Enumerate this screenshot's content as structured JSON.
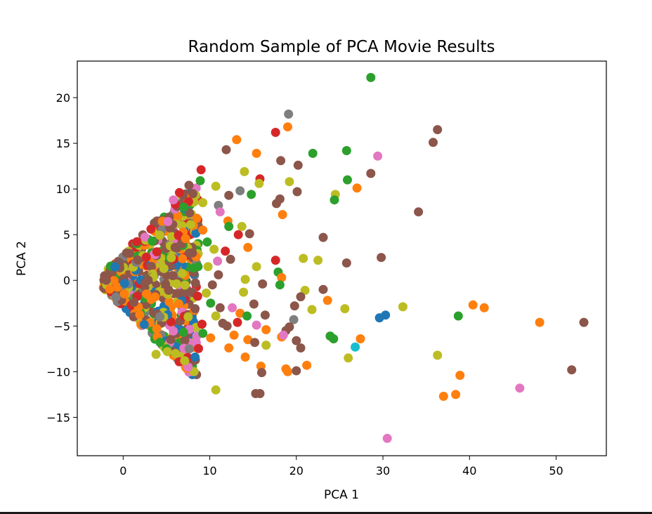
{
  "chart_data": {
    "type": "scatter",
    "title": "Random Sample of PCA Movie Results",
    "xlabel": "PCA 1",
    "ylabel": "PCA 2",
    "xlim": [
      -5.3,
      55.8
    ],
    "ylim": [
      -19.2,
      24.0
    ],
    "xticks": [
      0,
      10,
      20,
      30,
      40,
      50
    ],
    "yticks": [
      -15,
      -10,
      -5,
      0,
      5,
      10,
      15,
      20
    ],
    "grid": false,
    "legend": "none",
    "colors": {
      "blue": "#1f77b4",
      "orange": "#ff7f0e",
      "green": "#2ca02c",
      "red": "#d62728",
      "brown": "#8c564b",
      "pink": "#e377c2",
      "gray": "#7f7f7f",
      "olive": "#bcbd22",
      "cyan": "#17becf"
    },
    "points": [
      {
        "x": 28.6,
        "y": 22.2,
        "c": "green"
      },
      {
        "x": 19.1,
        "y": 18.2,
        "c": "gray"
      },
      {
        "x": 19.0,
        "y": 16.8,
        "c": "orange"
      },
      {
        "x": 17.6,
        "y": 16.2,
        "c": "red"
      },
      {
        "x": 36.3,
        "y": 16.5,
        "c": "brown"
      },
      {
        "x": 35.8,
        "y": 15.1,
        "c": "brown"
      },
      {
        "x": 13.1,
        "y": 15.4,
        "c": "orange"
      },
      {
        "x": 11.9,
        "y": 14.3,
        "c": "brown"
      },
      {
        "x": 15.4,
        "y": 13.9,
        "c": "orange"
      },
      {
        "x": 21.9,
        "y": 13.9,
        "c": "green"
      },
      {
        "x": 25.8,
        "y": 14.2,
        "c": "green"
      },
      {
        "x": 29.4,
        "y": 13.6,
        "c": "pink"
      },
      {
        "x": 18.2,
        "y": 13.1,
        "c": "brown"
      },
      {
        "x": 20.2,
        "y": 12.6,
        "c": "brown"
      },
      {
        "x": 28.6,
        "y": 11.7,
        "c": "brown"
      },
      {
        "x": 25.9,
        "y": 11.0,
        "c": "green"
      },
      {
        "x": 15.8,
        "y": 11.1,
        "c": "red"
      },
      {
        "x": 9.0,
        "y": 12.1,
        "c": "red"
      },
      {
        "x": 14.0,
        "y": 11.9,
        "c": "olive"
      },
      {
        "x": 13.5,
        "y": 9.8,
        "c": "gray"
      },
      {
        "x": 12.2,
        "y": 9.3,
        "c": "brown"
      },
      {
        "x": 14.8,
        "y": 9.4,
        "c": "green"
      },
      {
        "x": 15.7,
        "y": 10.6,
        "c": "olive"
      },
      {
        "x": 19.2,
        "y": 10.8,
        "c": "olive"
      },
      {
        "x": 20.1,
        "y": 9.7,
        "c": "brown"
      },
      {
        "x": 27.0,
        "y": 10.1,
        "c": "orange"
      },
      {
        "x": 24.5,
        "y": 9.4,
        "c": "olive"
      },
      {
        "x": 24.4,
        "y": 8.8,
        "c": "green"
      },
      {
        "x": 17.7,
        "y": 8.4,
        "c": "brown"
      },
      {
        "x": 18.1,
        "y": 8.9,
        "c": "brown"
      },
      {
        "x": 18.4,
        "y": 7.2,
        "c": "orange"
      },
      {
        "x": 11.0,
        "y": 8.2,
        "c": "gray"
      },
      {
        "x": 11.2,
        "y": 7.5,
        "c": "pink"
      },
      {
        "x": 10.7,
        "y": 10.3,
        "c": "olive"
      },
      {
        "x": 9.2,
        "y": 8.5,
        "c": "olive"
      },
      {
        "x": 8.9,
        "y": 10.9,
        "c": "green"
      },
      {
        "x": 7.6,
        "y": 10.4,
        "c": "brown"
      },
      {
        "x": 5.8,
        "y": 8.8,
        "c": "pink"
      },
      {
        "x": 6.5,
        "y": 9.6,
        "c": "red"
      },
      {
        "x": 7.0,
        "y": 8.0,
        "c": "green"
      },
      {
        "x": 34.1,
        "y": 7.5,
        "c": "brown"
      },
      {
        "x": 12.1,
        "y": 6.5,
        "c": "orange"
      },
      {
        "x": 12.2,
        "y": 5.9,
        "c": "green"
      },
      {
        "x": 13.7,
        "y": 5.9,
        "c": "olive"
      },
      {
        "x": 13.3,
        "y": 5.0,
        "c": "red"
      },
      {
        "x": 14.6,
        "y": 5.1,
        "c": "brown"
      },
      {
        "x": 23.1,
        "y": 4.7,
        "c": "brown"
      },
      {
        "x": 9.7,
        "y": 4.2,
        "c": "green"
      },
      {
        "x": 11.8,
        "y": 3.2,
        "c": "red"
      },
      {
        "x": 14.4,
        "y": 3.6,
        "c": "orange"
      },
      {
        "x": 10.9,
        "y": 2.1,
        "c": "pink"
      },
      {
        "x": 12.4,
        "y": 2.3,
        "c": "brown"
      },
      {
        "x": 17.6,
        "y": 2.2,
        "c": "red"
      },
      {
        "x": 20.8,
        "y": 2.4,
        "c": "olive"
      },
      {
        "x": 22.5,
        "y": 2.2,
        "c": "olive"
      },
      {
        "x": 25.8,
        "y": 1.9,
        "c": "brown"
      },
      {
        "x": 29.8,
        "y": 2.5,
        "c": "brown"
      },
      {
        "x": 15.4,
        "y": 1.5,
        "c": "olive"
      },
      {
        "x": 17.9,
        "y": 0.9,
        "c": "green"
      },
      {
        "x": 18.3,
        "y": 0.3,
        "c": "orange"
      },
      {
        "x": 14.1,
        "y": 0.1,
        "c": "olive"
      },
      {
        "x": 16.1,
        "y": -0.4,
        "c": "brown"
      },
      {
        "x": 18.1,
        "y": -0.5,
        "c": "green"
      },
      {
        "x": 13.9,
        "y": -1.3,
        "c": "olive"
      },
      {
        "x": 21.0,
        "y": -1.1,
        "c": "olive"
      },
      {
        "x": 23.1,
        "y": -1.0,
        "c": "brown"
      },
      {
        "x": 20.5,
        "y": -1.8,
        "c": "brown"
      },
      {
        "x": 19.8,
        "y": -2.8,
        "c": "brown"
      },
      {
        "x": 21.8,
        "y": -3.2,
        "c": "olive"
      },
      {
        "x": 23.6,
        "y": -2.2,
        "c": "orange"
      },
      {
        "x": 25.6,
        "y": -3.1,
        "c": "olive"
      },
      {
        "x": 32.3,
        "y": -2.9,
        "c": "olive"
      },
      {
        "x": 40.4,
        "y": -2.7,
        "c": "orange"
      },
      {
        "x": 41.7,
        "y": -3.0,
        "c": "orange"
      },
      {
        "x": 30.3,
        "y": -3.8,
        "c": "blue"
      },
      {
        "x": 29.6,
        "y": -4.1,
        "c": "blue"
      },
      {
        "x": 38.7,
        "y": -3.9,
        "c": "green"
      },
      {
        "x": 48.1,
        "y": -4.6,
        "c": "orange"
      },
      {
        "x": 53.2,
        "y": -4.6,
        "c": "brown"
      },
      {
        "x": 13.5,
        "y": -3.6,
        "c": "orange"
      },
      {
        "x": 14.3,
        "y": -3.9,
        "c": "green"
      },
      {
        "x": 15.1,
        "y": -2.6,
        "c": "brown"
      },
      {
        "x": 16.4,
        "y": -3.8,
        "c": "brown"
      },
      {
        "x": 12.6,
        "y": -3.0,
        "c": "pink"
      },
      {
        "x": 11.2,
        "y": -3.0,
        "c": "brown"
      },
      {
        "x": 13.2,
        "y": -4.6,
        "c": "red"
      },
      {
        "x": 15.4,
        "y": -4.9,
        "c": "pink"
      },
      {
        "x": 16.5,
        "y": -5.4,
        "c": "orange"
      },
      {
        "x": 19.7,
        "y": -4.3,
        "c": "gray"
      },
      {
        "x": 19.2,
        "y": -5.1,
        "c": "brown"
      },
      {
        "x": 18.8,
        "y": -5.5,
        "c": "brown"
      },
      {
        "x": 18.3,
        "y": -6.2,
        "c": "orange"
      },
      {
        "x": 18.5,
        "y": -6.0,
        "c": "pink"
      },
      {
        "x": 20.0,
        "y": -6.6,
        "c": "brown"
      },
      {
        "x": 20.5,
        "y": -7.4,
        "c": "brown"
      },
      {
        "x": 23.9,
        "y": -6.1,
        "c": "green"
      },
      {
        "x": 24.3,
        "y": -6.4,
        "c": "green"
      },
      {
        "x": 27.4,
        "y": -6.4,
        "c": "orange"
      },
      {
        "x": 26.8,
        "y": -7.3,
        "c": "cyan"
      },
      {
        "x": 26.0,
        "y": -8.5,
        "c": "olive"
      },
      {
        "x": 36.3,
        "y": -8.2,
        "c": "olive"
      },
      {
        "x": 14.4,
        "y": -6.5,
        "c": "orange"
      },
      {
        "x": 15.2,
        "y": -6.8,
        "c": "brown"
      },
      {
        "x": 16.5,
        "y": -7.1,
        "c": "olive"
      },
      {
        "x": 12.8,
        "y": -6.0,
        "c": "orange"
      },
      {
        "x": 12.2,
        "y": -7.4,
        "c": "orange"
      },
      {
        "x": 14.1,
        "y": -8.4,
        "c": "orange"
      },
      {
        "x": 15.9,
        "y": -9.4,
        "c": "orange"
      },
      {
        "x": 16.0,
        "y": -10.1,
        "c": "brown"
      },
      {
        "x": 18.8,
        "y": -9.7,
        "c": "orange"
      },
      {
        "x": 19.0,
        "y": -10.0,
        "c": "orange"
      },
      {
        "x": 20.0,
        "y": -9.9,
        "c": "brown"
      },
      {
        "x": 21.2,
        "y": -9.3,
        "c": "orange"
      },
      {
        "x": 38.9,
        "y": -10.4,
        "c": "orange"
      },
      {
        "x": 51.8,
        "y": -9.8,
        "c": "brown"
      },
      {
        "x": 10.7,
        "y": -12.0,
        "c": "olive"
      },
      {
        "x": 15.3,
        "y": -12.4,
        "c": "brown"
      },
      {
        "x": 15.8,
        "y": -12.4,
        "c": "brown"
      },
      {
        "x": 37.0,
        "y": -12.7,
        "c": "orange"
      },
      {
        "x": 38.4,
        "y": -12.5,
        "c": "orange"
      },
      {
        "x": 45.8,
        "y": -11.8,
        "c": "pink"
      },
      {
        "x": 30.5,
        "y": -17.3,
        "c": "pink"
      },
      {
        "x": 9.1,
        "y": -4.8,
        "c": "red"
      },
      {
        "x": 9.2,
        "y": -5.8,
        "c": "green"
      },
      {
        "x": 10.1,
        "y": -6.3,
        "c": "orange"
      },
      {
        "x": 8.3,
        "y": -8.4,
        "c": "blue"
      },
      {
        "x": 7.5,
        "y": -9.5,
        "c": "pink"
      },
      {
        "x": 7.1,
        "y": -8.8,
        "c": "olive"
      },
      {
        "x": 5.1,
        "y": -7.8,
        "c": "olive"
      },
      {
        "x": 3.8,
        "y": -8.1,
        "c": "olive"
      },
      {
        "x": 12.0,
        "y": -5.0,
        "c": "brown"
      },
      {
        "x": 11.5,
        "y": -4.7,
        "c": "brown"
      },
      {
        "x": 10.7,
        "y": -3.9,
        "c": "olive"
      },
      {
        "x": 10.1,
        "y": -2.5,
        "c": "green"
      },
      {
        "x": 9.6,
        "y": -1.4,
        "c": "olive"
      },
      {
        "x": 10.3,
        "y": -0.5,
        "c": "brown"
      },
      {
        "x": 11.0,
        "y": 0.6,
        "c": "brown"
      },
      {
        "x": 9.8,
        "y": 1.5,
        "c": "olive"
      },
      {
        "x": 10.5,
        "y": 3.4,
        "c": "olive"
      },
      {
        "x": 9.2,
        "y": 5.5,
        "c": "orange"
      },
      {
        "x": 8.5,
        "y": 6.8,
        "c": "orange"
      },
      {
        "x": 8.0,
        "y": 3.0,
        "c": "brown"
      },
      {
        "x": 8.3,
        "y": -3.1,
        "c": "brown"
      }
    ],
    "cluster_density": 650
  }
}
